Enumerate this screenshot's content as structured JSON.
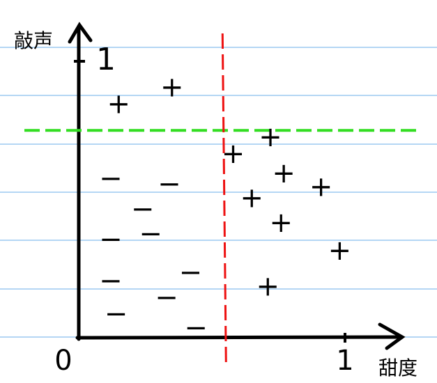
{
  "chart_data": {
    "type": "scatter",
    "y_label": "敲声",
    "x_label": "甜度",
    "xlim": [
      0,
      1
    ],
    "ylim": [
      0,
      1
    ],
    "xticks": [
      0,
      1
    ],
    "yticks": [
      1
    ],
    "series": [
      {
        "marker": "+",
        "color": "#000000",
        "x": [
          0.15,
          0.35,
          0.58,
          0.72,
          0.77,
          0.91,
          0.65,
          0.76,
          0.98,
          0.71
        ],
        "values": [
          0.84,
          0.9,
          0.66,
          0.72,
          0.59,
          0.54,
          0.5,
          0.41,
          0.31,
          0.18
        ]
      },
      {
        "marker": "−",
        "color": "#000000",
        "x": [
          0.12,
          0.34,
          0.24,
          0.27,
          0.12,
          0.12,
          0.42,
          0.33,
          0.14,
          0.44
        ],
        "values": [
          0.57,
          0.55,
          0.46,
          0.37,
          0.35,
          0.2,
          0.23,
          0.14,
          0.08,
          0.03
        ]
      }
    ],
    "threshold_lines": [
      {
        "axis": "y",
        "value": 0.75,
        "color": "#33dd22"
      },
      {
        "axis": "x",
        "value": 0.54,
        "color": "#ee1111"
      }
    ]
  }
}
